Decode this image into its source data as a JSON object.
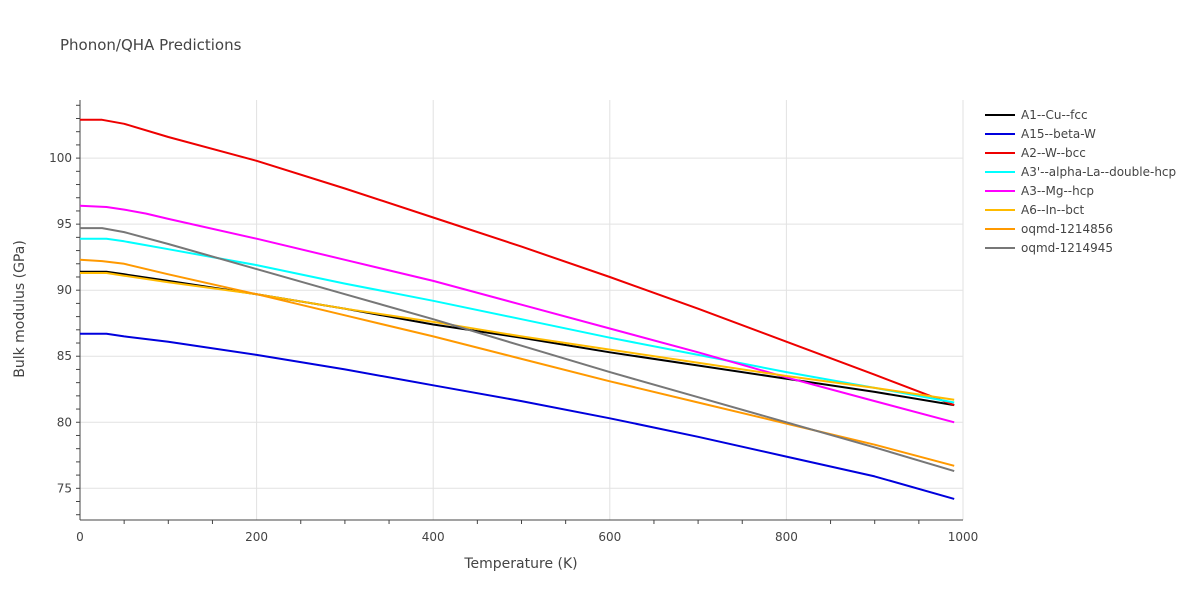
{
  "chart_data": {
    "type": "line",
    "title": "Phonon/QHA Predictions",
    "xlabel": "Temperature (K)",
    "ylabel": "Bulk modulus (GPa)",
    "xlim": [
      0,
      1000
    ],
    "ylim": [
      72.6,
      104.4
    ],
    "xticks": [
      0,
      200,
      400,
      600,
      800,
      1000
    ],
    "yticks": [
      75,
      80,
      85,
      90,
      95,
      100
    ],
    "grid": true,
    "legend_position": "top-right",
    "series": [
      {
        "name": "A1--Cu--fcc",
        "color": "#000000",
        "x": [
          0,
          30,
          50,
          100,
          200,
          300,
          400,
          500,
          600,
          700,
          800,
          900,
          990
        ],
        "y": [
          91.4,
          91.4,
          91.2,
          90.7,
          89.7,
          88.6,
          87.4,
          86.4,
          85.3,
          84.3,
          83.3,
          82.3,
          81.3
        ]
      },
      {
        "name": "A15--beta-W",
        "color": "#0000dd",
        "x": [
          0,
          30,
          50,
          100,
          200,
          300,
          400,
          500,
          600,
          700,
          800,
          900,
          990
        ],
        "y": [
          86.7,
          86.7,
          86.5,
          86.1,
          85.1,
          84.0,
          82.8,
          81.6,
          80.3,
          78.9,
          77.4,
          75.9,
          74.2
        ]
      },
      {
        "name": "A2--W--bcc",
        "color": "#ee0000",
        "x": [
          0,
          25,
          50,
          100,
          200,
          300,
          400,
          500,
          600,
          700,
          800,
          900,
          990
        ],
        "y": [
          102.9,
          102.9,
          102.6,
          101.6,
          99.8,
          97.7,
          95.5,
          93.3,
          91.0,
          88.6,
          86.1,
          83.6,
          81.3
        ]
      },
      {
        "name": "A3'--alpha-La--double-hcp",
        "color": "#00ffff",
        "x": [
          0,
          30,
          50,
          100,
          200,
          300,
          400,
          500,
          600,
          700,
          800,
          900,
          990
        ],
        "y": [
          93.9,
          93.9,
          93.7,
          93.1,
          91.9,
          90.5,
          89.2,
          87.8,
          86.4,
          85.1,
          83.8,
          82.6,
          81.5
        ]
      },
      {
        "name": "A3--Mg--hcp",
        "color": "#ff00ff",
        "x": [
          0,
          30,
          50,
          75,
          100,
          200,
          300,
          400,
          500,
          600,
          700,
          800,
          900,
          990
        ],
        "y": [
          96.4,
          96.3,
          96.1,
          95.8,
          95.4,
          93.9,
          92.3,
          90.7,
          88.9,
          87.1,
          85.3,
          83.4,
          81.6,
          80.0
        ]
      },
      {
        "name": "A6--In--bct",
        "color": "#ffbb00",
        "x": [
          0,
          30,
          50,
          100,
          200,
          300,
          400,
          500,
          600,
          700,
          800,
          900,
          990
        ],
        "y": [
          91.3,
          91.3,
          91.1,
          90.6,
          89.7,
          88.6,
          87.6,
          86.5,
          85.5,
          84.5,
          83.5,
          82.6,
          81.7
        ]
      },
      {
        "name": "oqmd-1214856",
        "color": "#ff9900",
        "x": [
          0,
          25,
          50,
          100,
          200,
          300,
          400,
          500,
          600,
          700,
          800,
          900,
          990
        ],
        "y": [
          92.3,
          92.2,
          92.0,
          91.2,
          89.7,
          88.1,
          86.5,
          84.8,
          83.1,
          81.5,
          79.9,
          78.3,
          76.7
        ]
      },
      {
        "name": "oqmd-1214945",
        "color": "#777777",
        "x": [
          0,
          25,
          50,
          100,
          200,
          300,
          400,
          500,
          600,
          700,
          800,
          900,
          990
        ],
        "y": [
          94.7,
          94.7,
          94.4,
          93.5,
          91.6,
          89.7,
          87.8,
          85.8,
          83.8,
          81.9,
          80.0,
          78.1,
          76.3
        ]
      }
    ]
  }
}
